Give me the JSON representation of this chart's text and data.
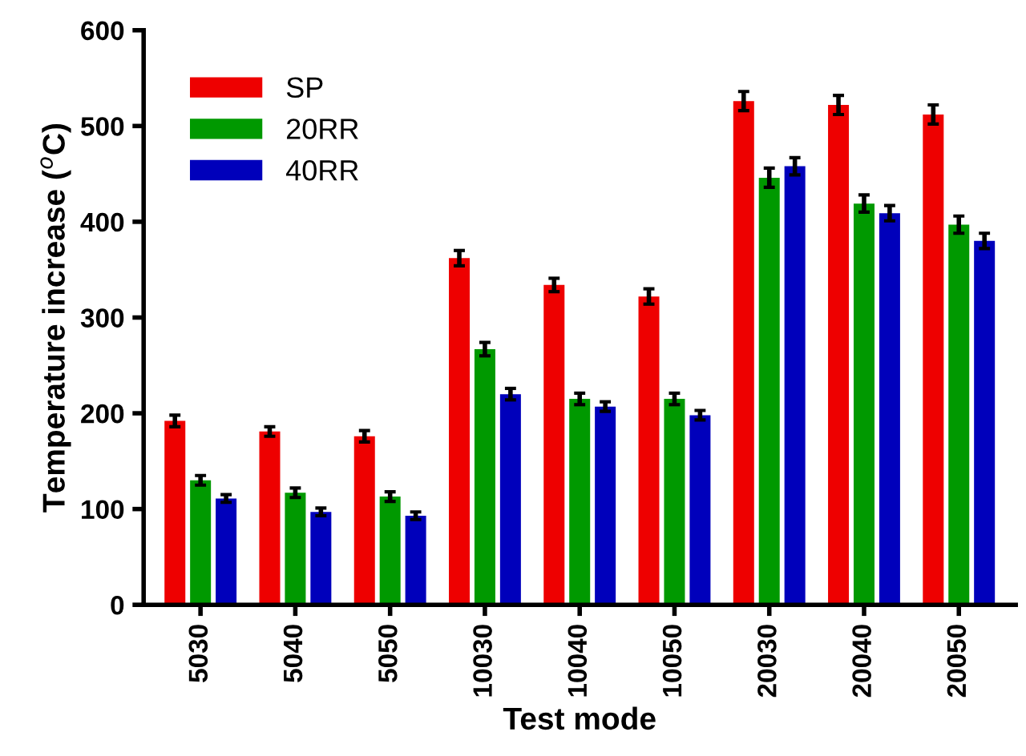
{
  "chart_data": {
    "type": "bar",
    "xlabel": "Test mode",
    "ylabel": "Temperature increase ($^{o}$C)",
    "categories": [
      "5030",
      "5040",
      "5050",
      "10030",
      "10040",
      "10050",
      "20030",
      "20040",
      "20050"
    ],
    "series": [
      {
        "name": "SP",
        "color": "#ee0000",
        "values": [
          192,
          181,
          176,
          362,
          334,
          322,
          526,
          522,
          512
        ],
        "errors": [
          6,
          5,
          6,
          8,
          7,
          8,
          10,
          10,
          10
        ]
      },
      {
        "name": "20RR",
        "color": "#009900",
        "values": [
          130,
          117,
          113,
          267,
          215,
          215,
          446,
          419,
          397
        ],
        "errors": [
          5,
          5,
          5,
          7,
          6,
          6,
          10,
          9,
          9
        ]
      },
      {
        "name": "40RR",
        "color": "#0000bb",
        "values": [
          111,
          97,
          93,
          220,
          207,
          198,
          458,
          409,
          380
        ],
        "errors": [
          4,
          4,
          4,
          6,
          5,
          5,
          9,
          8,
          8
        ]
      }
    ],
    "ylim": [
      0,
      600
    ],
    "yticks": [
      0,
      100,
      200,
      300,
      400,
      500,
      600
    ],
    "grid": false,
    "legend": "top left"
  }
}
